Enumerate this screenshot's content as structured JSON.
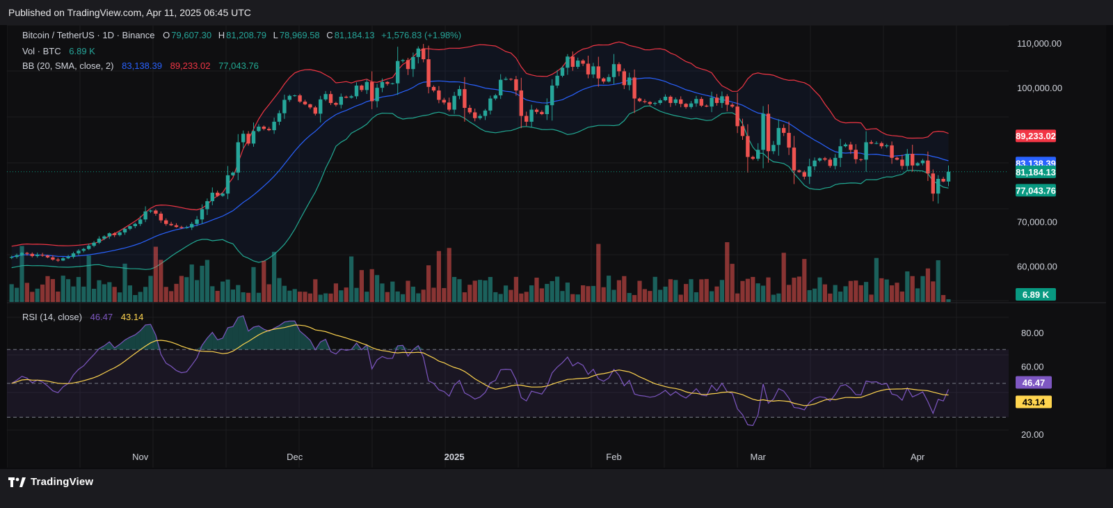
{
  "header": {
    "published_text": "Published on TradingView.com, Apr 11, 2025 06:45 UTC"
  },
  "legend": {
    "symbol": "Bitcoin / TetherUS · 1D · Binance",
    "open_label": "O",
    "open": "79,607.30",
    "high_label": "H",
    "high": "81,208.79",
    "low_label": "L",
    "low": "78,969.58",
    "close_label": "C",
    "close": "81,184.13",
    "change": "+1,576.83 (+1.98%)",
    "vol_label": "Vol · BTC",
    "vol_value": "6.89 K",
    "bb_label": "BB (20, SMA, close, 2)",
    "bb_basis": "83,138.39",
    "bb_upper": "89,233.02",
    "bb_lower": "77,043.76",
    "rsi_label": "RSI (14, close)",
    "rsi_value": "46.47",
    "rsi_ma": "43.14"
  },
  "footer": {
    "brand": "TradingView"
  },
  "colors": {
    "up": "#26a69a",
    "down": "#ef5350",
    "bb_basis": "#2962ff",
    "bb_upper": "#f23645",
    "bb_lower": "#22ab94",
    "rsi": "#7e57c2",
    "rsi_ma": "#ffd54f"
  },
  "chart_data": [
    {
      "type": "candlestick",
      "title": "Bitcoin / TetherUS · 1D · Binance",
      "price_axis_ticks": [
        "110,000.00",
        "100,000.00",
        "70,000.00",
        "60,000.00"
      ],
      "price_tick_values": [
        110000,
        100000,
        70000,
        60000
      ],
      "time_axis_labels": [
        "Nov",
        "Dec",
        "2025",
        "Feb",
        "Mar",
        "Apr"
      ],
      "time_label_dates": [
        "2024-11-01",
        "2024-12-01",
        "2025-01-01",
        "2025-02-01",
        "2025-03-01",
        "2025-04-01"
      ],
      "first_bar_date": "2024-10-07",
      "ylim": [
        52000,
        112500
      ],
      "price_labels": [
        {
          "text": "89,233.02",
          "value": 89233.02,
          "color": "#f23645"
        },
        {
          "text": "83,138.39",
          "value": 83138.39,
          "color": "#2962ff"
        },
        {
          "text": "81,184.13",
          "value": 81184.13,
          "color": "#089981"
        },
        {
          "text": "77,043.76",
          "value": 77043.76,
          "color": "#089981"
        }
      ],
      "volume_label": {
        "text": "6.89 K",
        "color": "#089981"
      },
      "close_series": [
        62100,
        62500,
        63000,
        62800,
        62300,
        62600,
        62400,
        62000,
        61500,
        61300,
        61800,
        62100,
        62900,
        63500,
        63900,
        64600,
        65300,
        66200,
        66700,
        67400,
        67000,
        67600,
        68400,
        69000,
        69500,
        70500,
        72300,
        72500,
        71800,
        70300,
        69500,
        69200,
        68800,
        68600,
        68700,
        69500,
        70500,
        72800,
        74600,
        76500,
        75800,
        76300,
        80400,
        81000,
        87800,
        89700,
        87500,
        90300,
        91300,
        90800,
        90500,
        92400,
        94300,
        97300,
        98200,
        98300,
        96900,
        96300,
        95600,
        94200,
        97400,
        98600,
        96600,
        96200,
        98000,
        97800,
        98100,
        100500,
        99500,
        101300,
        97000,
        100000,
        101300,
        100900,
        101000,
        106000,
        106200,
        104200,
        106900,
        108800,
        106400,
        100200,
        99400,
        97300,
        96700,
        95100,
        98200,
        99700,
        95500,
        94500,
        93200,
        93700,
        94900,
        97600,
        98300,
        101800,
        102000,
        101900,
        99400,
        93700,
        92400,
        95100,
        94600,
        94100,
        96100,
        100500,
        102700,
        104500,
        107000,
        104700,
        106100,
        105400,
        103000,
        104800,
        102100,
        101400,
        102400,
        105300,
        103700,
        100600,
        102300,
        97600,
        97000,
        96800,
        96400,
        96600,
        97200,
        98000,
        96600,
        97400,
        96400,
        95700,
        96500,
        97500,
        96000,
        95800,
        97800,
        96600,
        98100,
        96200,
        95800,
        91400,
        89200,
        84500,
        84100,
        86100,
        94200,
        85800,
        87200,
        91000,
        89900,
        86600,
        81500,
        81100,
        80100,
        82400,
        83700,
        84200,
        83900,
        82500,
        84300,
        86900,
        87300,
        86100,
        84000,
        83900,
        87800,
        87500,
        87600,
        86900,
        87100,
        84300,
        83900,
        82500,
        85200,
        82600,
        83100,
        83700,
        80800,
        76300,
        79600,
        79000,
        81200
      ]
    },
    {
      "type": "area",
      "title": "RSI (14, close)",
      "axis_ticks": [
        "80.00",
        "60.00",
        "20.00"
      ],
      "axis_tick_values": [
        80,
        60,
        20
      ],
      "band": [
        30,
        70
      ],
      "midline": 50,
      "rsi": 46.47,
      "rsi_ma": 43.14,
      "ylim": [
        15,
        89
      ]
    }
  ]
}
